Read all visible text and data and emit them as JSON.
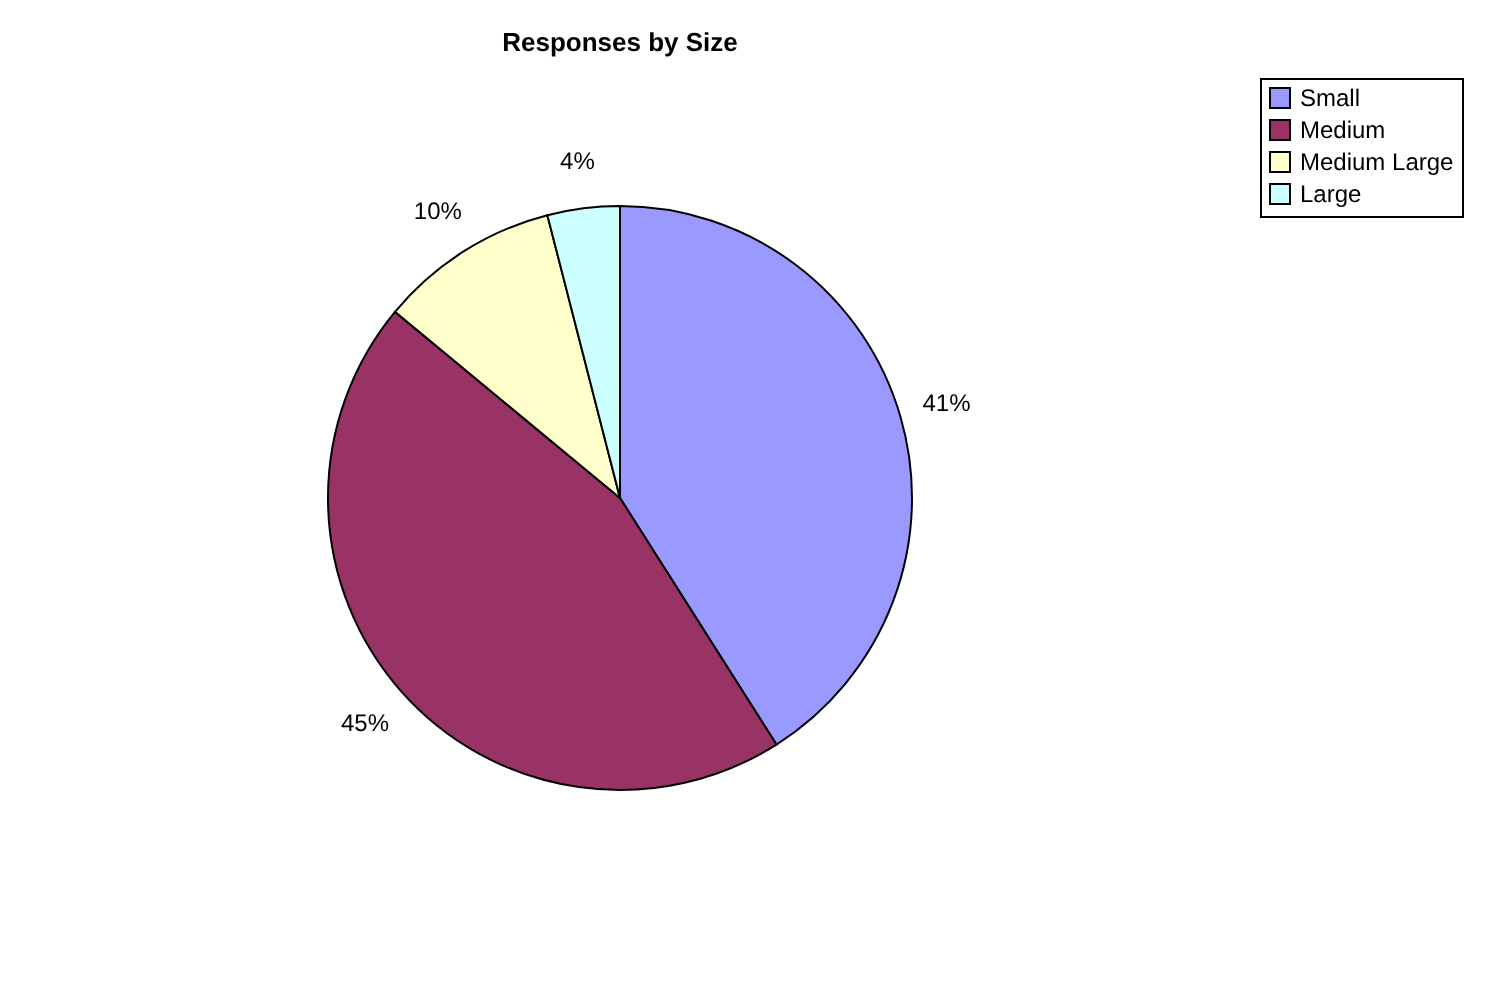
{
  "chart_data": {
    "type": "pie",
    "title": "Responses by Size",
    "categories": [
      "Small",
      "Medium",
      "Medium Large",
      "Large"
    ],
    "values": [
      41,
      45,
      10,
      4
    ],
    "value_labels": [
      "41%",
      "45%",
      "10%",
      "4%"
    ],
    "colors": [
      "#9999ff",
      "#993366",
      "#ffffcc",
      "#ccffff"
    ],
    "legend": "right"
  }
}
